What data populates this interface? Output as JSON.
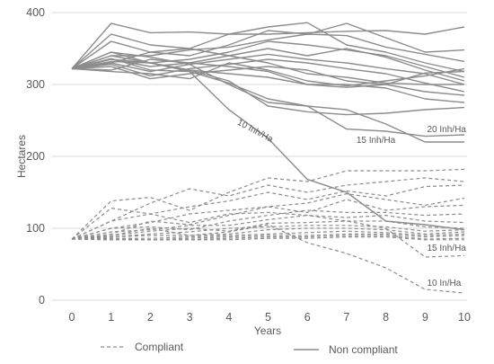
{
  "chart_data": {
    "type": "line",
    "xlabel": "Years",
    "ylabel": "Hectares",
    "x": [
      0,
      1,
      2,
      3,
      4,
      5,
      6,
      7,
      8,
      9,
      10
    ],
    "xlim": [
      0,
      10
    ],
    "ylim": [
      0,
      400
    ],
    "x_ticks": [
      "0",
      "1",
      "2",
      "3",
      "4",
      "5",
      "6",
      "7",
      "8",
      "9",
      "10"
    ],
    "y_ticks": [
      "0",
      "100",
      "200",
      "300",
      "400"
    ],
    "grid": "horizontal",
    "legend_position": "bottom",
    "colors": {
      "line": "#8c8c8c",
      "grid": "#d9d9d9",
      "text": "#595959"
    },
    "legend": [
      {
        "label": "Compliant",
        "style": "dashed"
      },
      {
        "label": "Non compliant",
        "style": "solid"
      }
    ],
    "groups": [
      {
        "name": "Non compliant",
        "style": "solid",
        "series": [
          {
            "values": [
              322,
              385,
              372,
              373,
              370,
              370,
              372,
              374,
              375,
              370,
              380
            ]
          },
          {
            "values": [
              322,
              370,
              355,
              350,
              370,
              380,
              386,
              355,
              345,
              330,
              318
            ]
          },
          {
            "values": [
              322,
              360,
              345,
              340,
              355,
              375,
              370,
              385,
              365,
              345,
              348
            ]
          },
          {
            "values": [
              322,
              340,
              340,
              348,
              352,
              362,
              370,
              368,
              352,
              342,
              332
            ]
          },
          {
            "values": [
              322,
              345,
              330,
              335,
              345,
              360,
              355,
              348,
              340,
              325,
              310
            ]
          },
          {
            "values": [
              322,
              335,
              325,
              330,
              340,
              350,
              340,
              350,
              338,
              320,
              305
            ]
          },
          {
            "values": [
              322,
              330,
              318,
              328,
              335,
              342,
              335,
              330,
              322,
              315,
              300
            ]
          },
          {
            "values": [
              322,
              328,
              312,
              322,
              328,
              335,
              330,
              322,
              315,
              302,
              290
            ]
          },
          {
            "values": [
              322,
              325,
              308,
              315,
              320,
              325,
              320,
              305,
              300,
              290,
              285
            ]
          },
          {
            "values": [
              322,
              318,
              315,
              308,
              330,
              320,
              305,
              298,
              305,
              312,
              322
            ]
          },
          {
            "values": [
              322,
              320,
              335,
              330,
              325,
              318,
              300,
              300,
              295,
              280,
              275
            ]
          },
          {
            "values": [
              322,
              330,
              345,
              350,
              340,
              330,
              315,
              310,
              302,
              300,
              300
            ]
          },
          {
            "values": [
              322,
              340,
              330,
              320,
              315,
              310,
              300,
              296,
              300,
              316,
              318
            ]
          },
          {
            "values": [
              322,
              335,
              330,
              320,
              305,
              270,
              262,
              258,
              260,
              265,
              268
            ]
          },
          {
            "values": [
              322,
              345,
              338,
              328,
              300,
              275,
              270,
              238,
              235,
              228,
              230
            ]
          },
          {
            "values": [
              322,
              336,
              320,
              318,
              302,
              280,
              270,
              265,
              245,
              220,
              220
            ]
          },
          {
            "values": [
              322,
              332,
              330,
              318,
              265,
              225,
              168,
              150,
              110,
              105,
              98
            ]
          }
        ]
      },
      {
        "name": "Compliant",
        "style": "dashed",
        "series": [
          {
            "values": [
              85,
              138,
              143,
              125,
              150,
              170,
              165,
              180,
              180,
              180,
              182
            ]
          },
          {
            "values": [
              85,
              110,
              135,
              155,
              145,
              160,
              150,
              160,
              165,
              170,
              165
            ]
          },
          {
            "values": [
              85,
              128,
              120,
              130,
              138,
              150,
              140,
              152,
              145,
              158,
              160
            ]
          },
          {
            "values": [
              85,
              100,
              108,
              120,
              125,
              130,
              135,
              148,
              140,
              132,
              142
            ]
          },
          {
            "values": [
              85,
              92,
              110,
              105,
              118,
              130,
              122,
              140,
              125,
              130,
              132
            ]
          },
          {
            "values": [
              85,
              100,
              102,
              98,
              110,
              118,
              125,
              122,
              122,
              118,
              120
            ]
          },
          {
            "values": [
              85,
              95,
              98,
              104,
              104,
              112,
              118,
              115,
              118,
              110,
              108
            ]
          },
          {
            "values": [
              85,
              90,
              96,
              100,
              96,
              107,
              108,
              110,
              110,
              102,
              100
            ]
          },
          {
            "values": [
              85,
              88,
              92,
              95,
              100,
              102,
              104,
              104,
              102,
              96,
              98
            ]
          },
          {
            "values": [
              85,
              88,
              90,
              90,
              92,
              98,
              100,
              100,
              98,
              92,
              95
            ]
          },
          {
            "values": [
              85,
              86,
              86,
              88,
              90,
              92,
              94,
              96,
              94,
              90,
              92
            ]
          },
          {
            "values": [
              85,
              86,
              84,
              86,
              88,
              90,
              90,
              92,
              92,
              88,
              90
            ]
          },
          {
            "values": [
              85,
              84,
              84,
              84,
              86,
              88,
              88,
              90,
              90,
              85,
              86
            ]
          },
          {
            "values": [
              85,
              84,
              84,
              84,
              84,
              86,
              86,
              88,
              88,
              84,
              84
            ]
          },
          {
            "values": [
              85,
              110,
              120,
              108,
              120,
              122,
              118,
              110,
              100,
              60,
              62
            ]
          },
          {
            "values": [
              85,
              90,
              100,
              90,
              95,
              105,
              80,
              65,
              45,
              15,
              10
            ]
          }
        ]
      }
    ],
    "annotations": [
      {
        "text": "10 Inh/Ha",
        "x": 4.2,
        "y": 245,
        "angle": 28
      },
      {
        "text": "20 Inh/Ha",
        "x": 9.05,
        "y": 234,
        "angle": 0
      },
      {
        "text": "15 Inh/Ha",
        "x": 7.25,
        "y": 219,
        "angle": 0
      },
      {
        "text": "15 Inh/Ha",
        "x": 9.05,
        "y": 69,
        "angle": 0
      },
      {
        "text": "10 In/Ha",
        "x": 9.05,
        "y": 20,
        "angle": 0
      }
    ]
  }
}
